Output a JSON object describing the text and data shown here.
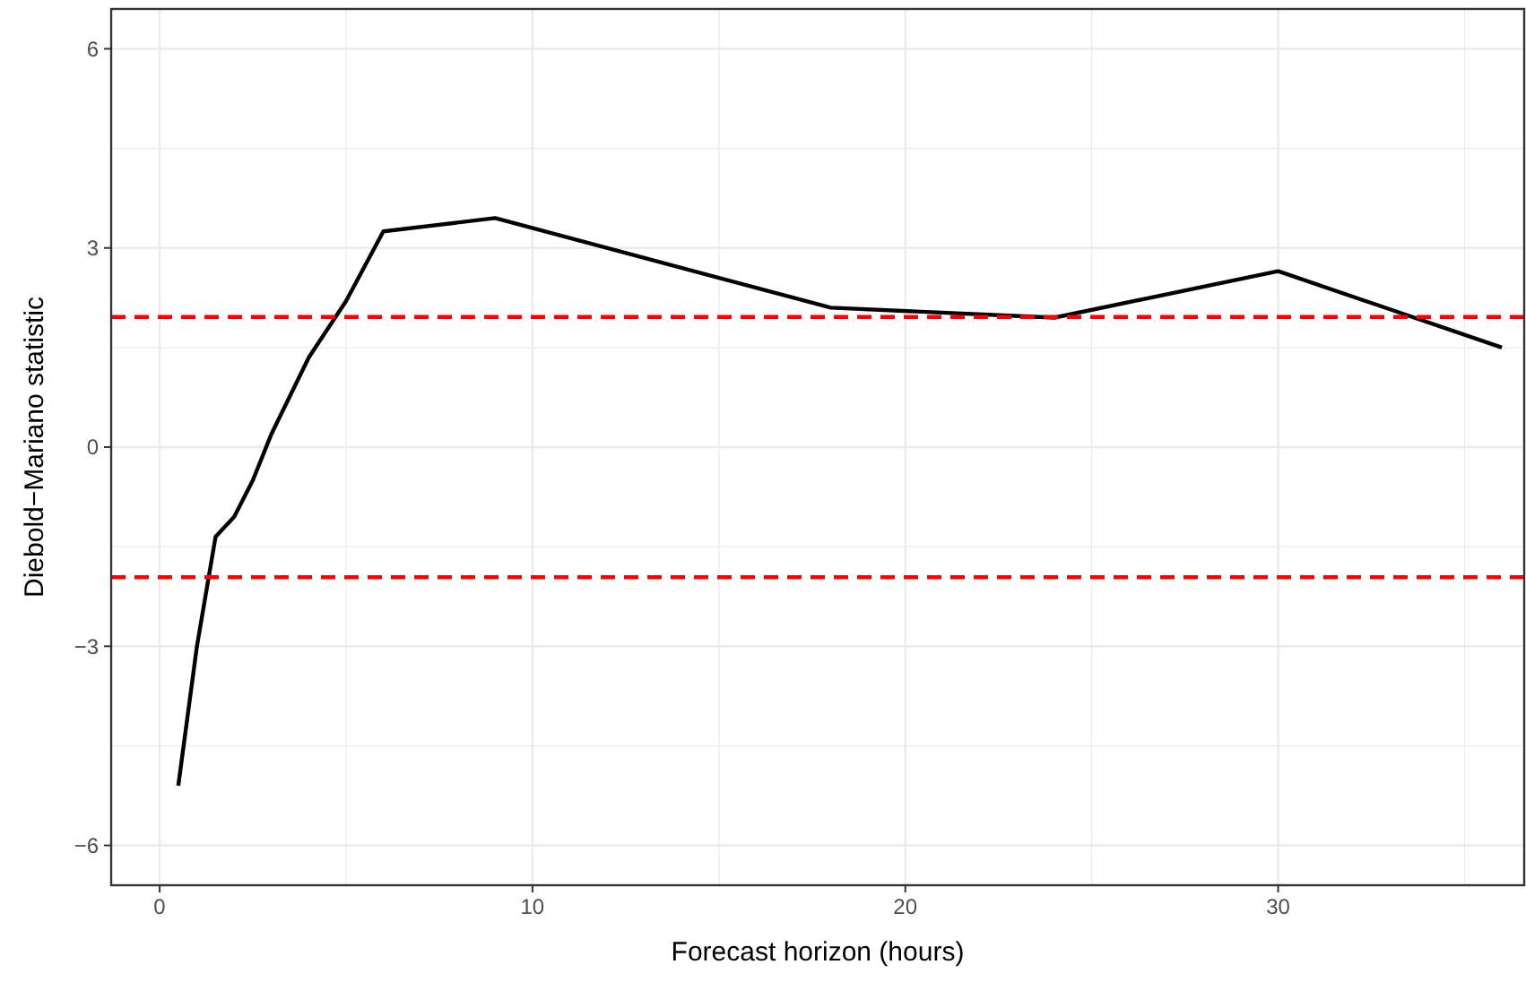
{
  "chart_data": {
    "type": "line",
    "xlabel": "Forecast horizon (hours)",
    "ylabel": "Diebold−Mariano statistic",
    "x": [
      0.5,
      1,
      1.5,
      2,
      2.5,
      3,
      4,
      5,
      6,
      9,
      18,
      24,
      30,
      36
    ],
    "series": [
      {
        "color": "#000000",
        "values": [
          -5.1,
          -3.0,
          -1.35,
          -1.05,
          -0.5,
          0.2,
          1.35,
          2.2,
          3.25,
          3.45,
          2.1,
          1.95,
          2.65,
          1.5
        ]
      }
    ],
    "xlim": [
      -1.3,
      36.6
    ],
    "ylim": [
      -6.6,
      6.6
    ],
    "xticks": [
      0,
      10,
      20,
      30
    ],
    "yticks": [
      -6,
      -3,
      0,
      3,
      6
    ],
    "grid": true,
    "ref_lines": [
      {
        "axis": "y",
        "value": 1.96,
        "color": "#ff0000",
        "line_style": "dashed"
      },
      {
        "axis": "y",
        "value": -1.96,
        "color": "#ff0000",
        "line_style": "dashed"
      }
    ]
  }
}
